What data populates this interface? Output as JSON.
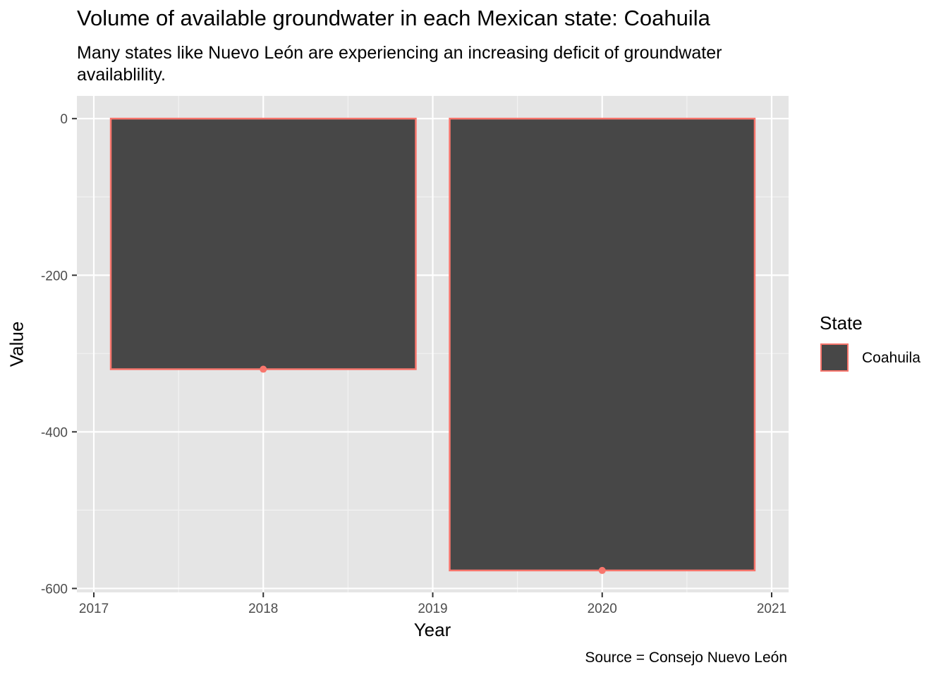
{
  "chart_data": {
    "type": "bar",
    "title": "Volume of available groundwater in each Mexican state: Coahuila",
    "subtitle": "Many states like Nuevo León are experiencing an increasing deficit of groundwater availablility.",
    "xlabel": "Year",
    "ylabel": "Value",
    "caption": "Source = Consejo Nuevo León",
    "x": [
      2018,
      2020
    ],
    "series": [
      {
        "name": "Coahuila",
        "values": [
          -320,
          -577
        ]
      }
    ],
    "xlim": [
      2016.9,
      2021.1
    ],
    "ylim": [
      -600,
      0
    ],
    "x_ticks": [
      2017,
      2018,
      2019,
      2020,
      2021
    ],
    "y_ticks": [
      0,
      -200,
      -400,
      -600
    ],
    "legend": {
      "title": "State",
      "position": "right"
    },
    "bar_fill": "#474747",
    "bar_outline": "#F8766D",
    "panel_background": "#E5E5E5",
    "grid": true
  }
}
